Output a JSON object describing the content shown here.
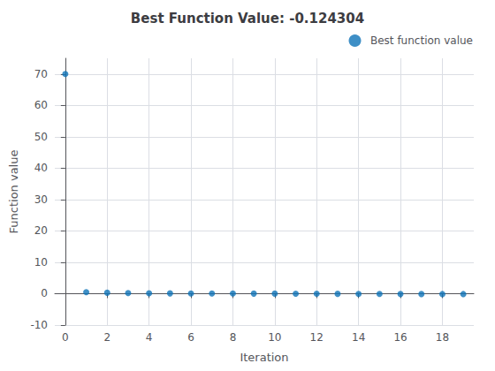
{
  "chart_data": {
    "type": "scatter",
    "title": "Best Function Value: -0.124304",
    "xlabel": "Iteration",
    "ylabel": "Function value",
    "series": [
      {
        "name": "Best function value",
        "color": "#0E73B8",
        "x": [
          0,
          1,
          2,
          3,
          4,
          5,
          6,
          7,
          8,
          9,
          10,
          11,
          12,
          13,
          14,
          15,
          16,
          17,
          18,
          19
        ],
        "values": [
          70,
          0.5,
          0.3,
          0.2,
          0.15,
          0.1,
          0.08,
          0.05,
          0.04,
          0.03,
          0.02,
          0.01,
          0.0,
          -0.05,
          -0.08,
          -0.1,
          -0.11,
          -0.12,
          -0.123,
          -0.124
        ]
      }
    ],
    "xlim": [
      -0.5,
      19.5
    ],
    "ylim": [
      -10,
      75
    ],
    "xticks": [
      0,
      2,
      4,
      6,
      8,
      10,
      12,
      14,
      16,
      18
    ],
    "yticks": [
      -10,
      0,
      10,
      20,
      30,
      40,
      50,
      60,
      70
    ],
    "grid": true,
    "legend": "upper right"
  }
}
